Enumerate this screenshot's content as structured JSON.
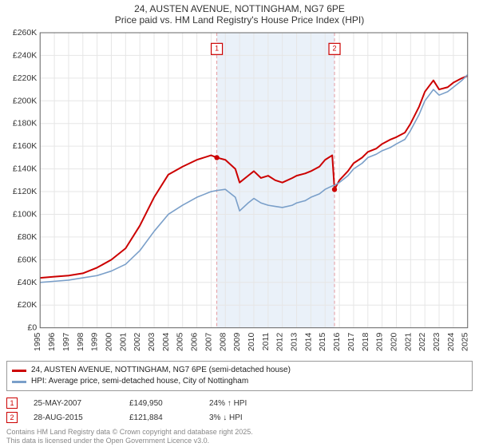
{
  "title": {
    "line1": "24, AUSTEN AVENUE, NOTTINGHAM, NG7 6PE",
    "line2": "Price paid vs. HM Land Registry's House Price Index (HPI)",
    "fontsize": 12
  },
  "chart": {
    "type": "line",
    "background_color": "#ffffff",
    "plot_border_color": "#666666",
    "grid_color": "#e6e6e6",
    "highlight_band": {
      "x_start": 2007.4,
      "x_end": 2015.66,
      "fill": "#eaf1f9"
    },
    "xaxis": {
      "min": 1995,
      "max": 2025,
      "ticks": [
        1995,
        1996,
        1997,
        1998,
        1999,
        2000,
        2001,
        2002,
        2003,
        2004,
        2005,
        2006,
        2007,
        2008,
        2009,
        2010,
        2011,
        2012,
        2013,
        2014,
        2015,
        2016,
        2017,
        2018,
        2019,
        2020,
        2021,
        2022,
        2023,
        2024,
        2025
      ],
      "label_fontsize": 10,
      "label_rotation": -90
    },
    "yaxis": {
      "min": 0,
      "max": 260000,
      "ticks": [
        0,
        20000,
        40000,
        60000,
        80000,
        100000,
        120000,
        140000,
        160000,
        180000,
        200000,
        220000,
        240000,
        260000
      ],
      "tick_labels": [
        "£0",
        "£20K",
        "£40K",
        "£60K",
        "£80K",
        "£100K",
        "£120K",
        "£140K",
        "£160K",
        "£180K",
        "£200K",
        "£220K",
        "£240K",
        "£260K"
      ],
      "label_fontsize": 10
    },
    "series": [
      {
        "name": "price_paid",
        "color": "#cc0000",
        "line_width": 2,
        "points": [
          [
            1995,
            44000
          ],
          [
            1996,
            45000
          ],
          [
            1997,
            46000
          ],
          [
            1998,
            48000
          ],
          [
            1999,
            53000
          ],
          [
            2000,
            60000
          ],
          [
            2001,
            70000
          ],
          [
            2002,
            90000
          ],
          [
            2003,
            115000
          ],
          [
            2004,
            135000
          ],
          [
            2005,
            142000
          ],
          [
            2006,
            148000
          ],
          [
            2007,
            152000
          ],
          [
            2007.4,
            149950
          ],
          [
            2008,
            148000
          ],
          [
            2008.7,
            140000
          ],
          [
            2009,
            128000
          ],
          [
            2009.6,
            134000
          ],
          [
            2010,
            138000
          ],
          [
            2010.5,
            132000
          ],
          [
            2011,
            134000
          ],
          [
            2011.5,
            130000
          ],
          [
            2012,
            128000
          ],
          [
            2012.7,
            132000
          ],
          [
            2013,
            134000
          ],
          [
            2013.6,
            136000
          ],
          [
            2014,
            138000
          ],
          [
            2014.6,
            142000
          ],
          [
            2015,
            148000
          ],
          [
            2015.5,
            152000
          ],
          [
            2015.66,
            121884
          ],
          [
            2016,
            130000
          ],
          [
            2016.6,
            138000
          ],
          [
            2017,
            145000
          ],
          [
            2017.6,
            150000
          ],
          [
            2018,
            155000
          ],
          [
            2018.6,
            158000
          ],
          [
            2019,
            162000
          ],
          [
            2019.6,
            166000
          ],
          [
            2020,
            168000
          ],
          [
            2020.6,
            172000
          ],
          [
            2021,
            180000
          ],
          [
            2021.6,
            195000
          ],
          [
            2022,
            208000
          ],
          [
            2022.6,
            218000
          ],
          [
            2023,
            210000
          ],
          [
            2023.6,
            212000
          ],
          [
            2024,
            216000
          ],
          [
            2024.6,
            220000
          ],
          [
            2025,
            222000
          ]
        ],
        "markers": [
          {
            "x": 2007.4,
            "y": 149950
          },
          {
            "x": 2015.66,
            "y": 121884
          }
        ]
      },
      {
        "name": "hpi",
        "color": "#7a9fc9",
        "line_width": 1.6,
        "points": [
          [
            1995,
            40000
          ],
          [
            1996,
            41000
          ],
          [
            1997,
            42000
          ],
          [
            1998,
            44000
          ],
          [
            1999,
            46000
          ],
          [
            2000,
            50000
          ],
          [
            2001,
            56000
          ],
          [
            2002,
            68000
          ],
          [
            2003,
            85000
          ],
          [
            2004,
            100000
          ],
          [
            2005,
            108000
          ],
          [
            2006,
            115000
          ],
          [
            2007,
            120000
          ],
          [
            2007.4,
            121000
          ],
          [
            2008,
            122000
          ],
          [
            2008.7,
            115000
          ],
          [
            2009,
            103000
          ],
          [
            2009.6,
            110000
          ],
          [
            2010,
            114000
          ],
          [
            2010.5,
            110000
          ],
          [
            2011,
            108000
          ],
          [
            2011.5,
            107000
          ],
          [
            2012,
            106000
          ],
          [
            2012.7,
            108000
          ],
          [
            2013,
            110000
          ],
          [
            2013.6,
            112000
          ],
          [
            2014,
            115000
          ],
          [
            2014.6,
            118000
          ],
          [
            2015,
            122000
          ],
          [
            2015.5,
            125000
          ],
          [
            2015.66,
            125500
          ],
          [
            2016,
            128000
          ],
          [
            2016.6,
            134000
          ],
          [
            2017,
            140000
          ],
          [
            2017.6,
            145000
          ],
          [
            2018,
            150000
          ],
          [
            2018.6,
            153000
          ],
          [
            2019,
            156000
          ],
          [
            2019.6,
            159000
          ],
          [
            2020,
            162000
          ],
          [
            2020.6,
            166000
          ],
          [
            2021,
            174000
          ],
          [
            2021.6,
            188000
          ],
          [
            2022,
            200000
          ],
          [
            2022.6,
            210000
          ],
          [
            2023,
            205000
          ],
          [
            2023.6,
            208000
          ],
          [
            2024,
            212000
          ],
          [
            2024.6,
            218000
          ],
          [
            2025,
            223000
          ]
        ]
      }
    ],
    "annotations": [
      {
        "n": "1",
        "x": 2007.4,
        "y_box": 245000,
        "dash_color": "#e39aa0"
      },
      {
        "n": "2",
        "x": 2015.66,
        "y_box": 245000,
        "dash_color": "#e39aa0"
      }
    ]
  },
  "legend": {
    "items": [
      {
        "color": "#cc0000",
        "label": "24, AUSTEN AVENUE, NOTTINGHAM, NG7 6PE (semi-detached house)"
      },
      {
        "color": "#7a9fc9",
        "label": "HPI: Average price, semi-detached house, City of Nottingham"
      }
    ]
  },
  "sales": [
    {
      "n": "1",
      "date": "25-MAY-2007",
      "price": "£149,950",
      "delta": "24% ↑ HPI"
    },
    {
      "n": "2",
      "date": "28-AUG-2015",
      "price": "£121,884",
      "delta": "3% ↓ HPI"
    }
  ],
  "attribution": {
    "line1": "Contains HM Land Registry data © Crown copyright and database right 2025.",
    "line2": "This data is licensed under the Open Government Licence v3.0."
  }
}
